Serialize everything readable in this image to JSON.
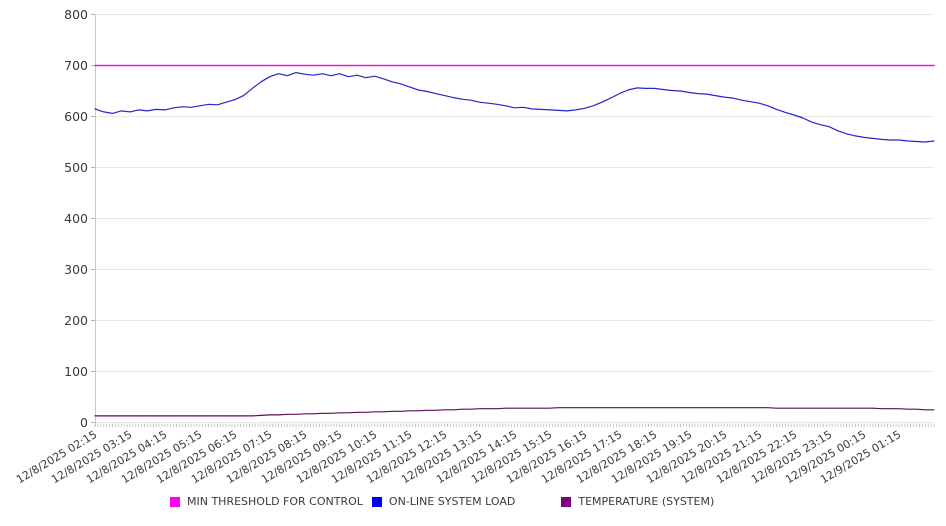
{
  "chart_data": {
    "type": "line",
    "title": "",
    "xlabel": "",
    "ylabel": "",
    "ylim": [
      0,
      800
    ],
    "yticks": [
      0,
      100,
      200,
      300,
      400,
      500,
      600,
      700,
      800
    ],
    "grid": "horizontal",
    "legend_position": "bottom",
    "x_step_minutes": 15,
    "x_labels": [
      "12/8/2025 02:15",
      "12/8/2025 03:15",
      "12/8/2025 04:15",
      "12/8/2025 05:15",
      "12/8/2025 06:15",
      "12/8/2025 07:15",
      "12/8/2025 08:15",
      "12/8/2025 09:15",
      "12/8/2025 10:15",
      "12/8/2025 11:15",
      "12/8/2025 12:15",
      "12/8/2025 13:15",
      "12/8/2025 14:15",
      "12/8/2025 15:15",
      "12/8/2025 16:15",
      "12/8/2025 17:15",
      "12/8/2025 18:15",
      "12/8/2025 19:15",
      "12/8/2025 20:15",
      "12/8/2025 21:15",
      "12/8/2025 22:15",
      "12/8/2025 23:15",
      "12/9/2025 00:15",
      "12/9/2025 01:15"
    ],
    "series": [
      {
        "name": "MIN THRESHOLD FOR CONTROL",
        "swatch": "#ff00ff",
        "line": "#e518d3",
        "constant": 700
      },
      {
        "name": "ON-LINE SYSTEM LOAD",
        "swatch": "#0000ee",
        "line": "#2626cb",
        "values": [
          615,
          609,
          606,
          611,
          609,
          613,
          611,
          614,
          613,
          617,
          619,
          618,
          621,
          624,
          623,
          628,
          633,
          641,
          655,
          668,
          678,
          684,
          680,
          686,
          683,
          681,
          684,
          680,
          684,
          678,
          681,
          676,
          679,
          674,
          668,
          664,
          658,
          652,
          649,
          645,
          641,
          637,
          634,
          632,
          628,
          626,
          624,
          621,
          617,
          618,
          615,
          614,
          613,
          612,
          611,
          613,
          616,
          621,
          628,
          636,
          645,
          652,
          656,
          655,
          655,
          653,
          651,
          650,
          647,
          645,
          644,
          641,
          638,
          636,
          632,
          629,
          626,
          621,
          614,
          608,
          603,
          597,
          589,
          584,
          580,
          572,
          566,
          562,
          559,
          557,
          555,
          554,
          554,
          552,
          551,
          550,
          552
        ]
      },
      {
        "name": "TEMPERATURE (SYSTEM)",
        "swatch": "#800080",
        "line": "#5c0d5c",
        "values": [
          13,
          13,
          13,
          13,
          13,
          13,
          13,
          13,
          13,
          13,
          13,
          13,
          13,
          13,
          13,
          13,
          13,
          13,
          13,
          14,
          15,
          15,
          16,
          16,
          17,
          17,
          18,
          18,
          19,
          19,
          20,
          20,
          21,
          21,
          22,
          22,
          23,
          23,
          24,
          24,
          25,
          25,
          26,
          26,
          27,
          27,
          27,
          28,
          28,
          28,
          28,
          28,
          28,
          29,
          29,
          29,
          29,
          29,
          29,
          29,
          29,
          29,
          29,
          29,
          29,
          29,
          29,
          29,
          29,
          29,
          29,
          29,
          29,
          29,
          29,
          29,
          29,
          29,
          28,
          28,
          28,
          28,
          28,
          28,
          28,
          28,
          28,
          28,
          28,
          28,
          27,
          27,
          27,
          26,
          26,
          25,
          25
        ]
      }
    ]
  }
}
